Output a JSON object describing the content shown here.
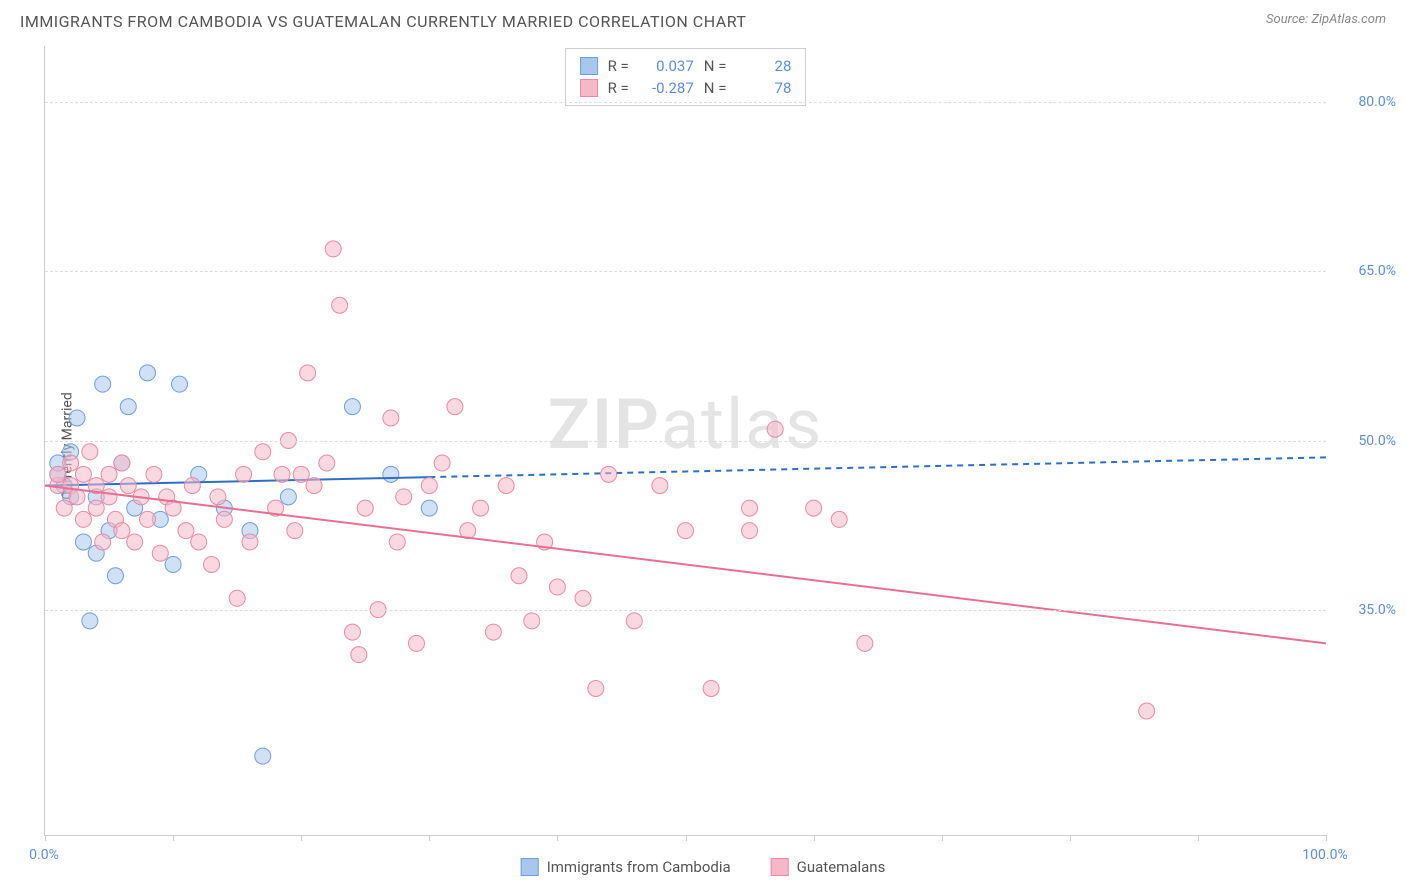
{
  "title": "IMMIGRANTS FROM CAMBODIA VS GUATEMALAN CURRENTLY MARRIED CORRELATION CHART",
  "source_prefix": "Source: ",
  "source_name": "ZipAtlas.com",
  "y_axis_label": "Currently Married",
  "watermark_bold": "ZIP",
  "watermark_rest": "atlas",
  "chart": {
    "type": "scatter",
    "xlim": [
      0,
      100
    ],
    "ylim": [
      15,
      85
    ],
    "x_ticks": [
      0,
      10,
      20,
      30,
      40,
      50,
      60,
      70,
      80,
      90,
      100
    ],
    "x_tick_labels": {
      "0": "0.0%",
      "100": "100.0%"
    },
    "y_gridlines": [
      35,
      50,
      65,
      80
    ],
    "y_tick_labels": {
      "35": "35.0%",
      "50": "50.0%",
      "65": "65.0%",
      "80": "80.0%"
    },
    "y_tick_color": "#5b8fd6",
    "x_tick_color": "#5b8fd6",
    "grid_color": "#dddddd",
    "axis_color": "#cccccc",
    "background": "#ffffff",
    "marker_radius": 8,
    "marker_opacity": 0.55,
    "series": [
      {
        "id": "cambodia",
        "label": "Immigrants from Cambodia",
        "color_fill": "#a9c7ec",
        "color_stroke": "#6f9fd8",
        "R": "0.037",
        "N": "28",
        "points": [
          [
            1,
            47
          ],
          [
            1,
            48
          ],
          [
            1.5,
            46
          ],
          [
            2,
            49
          ],
          [
            2,
            45
          ],
          [
            2.5,
            52
          ],
          [
            3,
            41
          ],
          [
            3.5,
            34
          ],
          [
            4,
            45
          ],
          [
            4,
            40
          ],
          [
            4.5,
            55
          ],
          [
            5,
            42
          ],
          [
            5.5,
            38
          ],
          [
            6,
            48
          ],
          [
            6.5,
            53
          ],
          [
            7,
            44
          ],
          [
            8,
            56
          ],
          [
            9,
            43
          ],
          [
            10,
            39
          ],
          [
            10.5,
            55
          ],
          [
            12,
            47
          ],
          [
            14,
            44
          ],
          [
            16,
            42
          ],
          [
            17,
            22
          ],
          [
            19,
            45
          ],
          [
            24,
            53
          ],
          [
            27,
            47
          ],
          [
            30,
            44
          ]
        ],
        "trend": {
          "x1": 0,
          "y1": 46,
          "x2": 100,
          "y2": 48.5,
          "solid_until_x": 30,
          "color": "#2c6fc7",
          "width": 2
        }
      },
      {
        "id": "guatemalans",
        "label": "Guatemalans",
        "color_fill": "#f6b8c8",
        "color_stroke": "#e88aa3",
        "R": "-0.287",
        "N": "78",
        "points": [
          [
            1,
            46
          ],
          [
            1,
            47
          ],
          [
            1.5,
            44
          ],
          [
            2,
            48
          ],
          [
            2,
            46
          ],
          [
            2.5,
            45
          ],
          [
            3,
            47
          ],
          [
            3,
            43
          ],
          [
            3.5,
            49
          ],
          [
            4,
            46
          ],
          [
            4,
            44
          ],
          [
            4.5,
            41
          ],
          [
            5,
            47
          ],
          [
            5,
            45
          ],
          [
            5.5,
            43
          ],
          [
            6,
            48
          ],
          [
            6,
            42
          ],
          [
            6.5,
            46
          ],
          [
            7,
            41
          ],
          [
            7.5,
            45
          ],
          [
            8,
            43
          ],
          [
            8.5,
            47
          ],
          [
            9,
            40
          ],
          [
            9.5,
            45
          ],
          [
            10,
            44
          ],
          [
            11,
            42
          ],
          [
            11.5,
            46
          ],
          [
            12,
            41
          ],
          [
            13,
            39
          ],
          [
            13.5,
            45
          ],
          [
            14,
            43
          ],
          [
            15,
            36
          ],
          [
            15.5,
            47
          ],
          [
            16,
            41
          ],
          [
            17,
            49
          ],
          [
            18,
            44
          ],
          [
            18.5,
            47
          ],
          [
            19,
            50
          ],
          [
            19.5,
            42
          ],
          [
            20,
            47
          ],
          [
            20.5,
            56
          ],
          [
            21,
            46
          ],
          [
            22,
            48
          ],
          [
            22.5,
            67
          ],
          [
            23,
            62
          ],
          [
            24,
            33
          ],
          [
            24.5,
            31
          ],
          [
            25,
            44
          ],
          [
            26,
            35
          ],
          [
            27,
            52
          ],
          [
            27.5,
            41
          ],
          [
            28,
            45
          ],
          [
            29,
            32
          ],
          [
            30,
            46
          ],
          [
            31,
            48
          ],
          [
            32,
            53
          ],
          [
            33,
            42
          ],
          [
            34,
            44
          ],
          [
            35,
            33
          ],
          [
            36,
            46
          ],
          [
            37,
            38
          ],
          [
            38,
            34
          ],
          [
            39,
            41
          ],
          [
            40,
            37
          ],
          [
            42,
            36
          ],
          [
            43,
            28
          ],
          [
            44,
            47
          ],
          [
            46,
            34
          ],
          [
            48,
            46
          ],
          [
            50,
            42
          ],
          [
            52,
            28
          ],
          [
            55,
            42
          ],
          [
            57,
            51
          ],
          [
            60,
            44
          ],
          [
            62,
            43
          ],
          [
            64,
            32
          ],
          [
            86,
            26
          ],
          [
            55,
            44
          ]
        ],
        "trend": {
          "x1": 0,
          "y1": 46,
          "x2": 100,
          "y2": 32,
          "solid_until_x": 100,
          "color": "#e86f93",
          "width": 2
        }
      }
    ]
  },
  "stats_box": {
    "r_label": "R =",
    "n_label": "N =",
    "value_color": "#5b8fd6"
  }
}
